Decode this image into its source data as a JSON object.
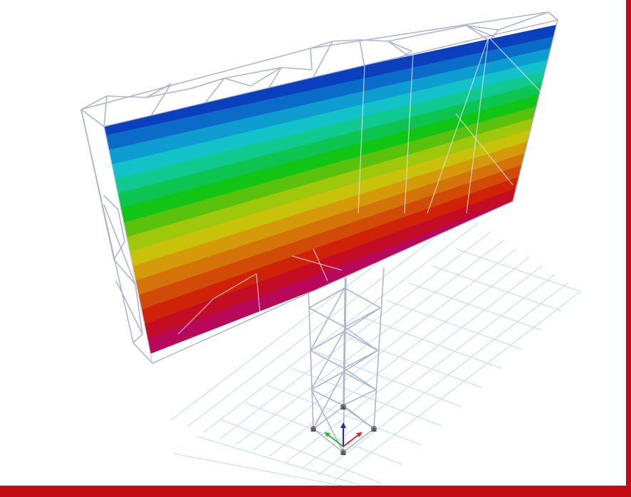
{
  "viewport": {
    "frame_color": "#c40a12",
    "background": "#ffffff"
  },
  "contour": {
    "band_colors": [
      "#0a3fbd",
      "#0a6bc9",
      "#0d9dd1",
      "#12c2c8",
      "#10c98e",
      "#0cc44f",
      "#12c414",
      "#5ac20c",
      "#9fc70c",
      "#c8c30a",
      "#d49a0a",
      "#d3730a",
      "#d14a08",
      "#cf2208",
      "#c40d24",
      "#b8085a"
    ]
  },
  "axis_triad": {
    "x_color": "#d22b2b",
    "y_color": "#2fb52f",
    "z_color": "#2323d6"
  },
  "icons": [
    "support-icon",
    "axis-triad-icon"
  ]
}
